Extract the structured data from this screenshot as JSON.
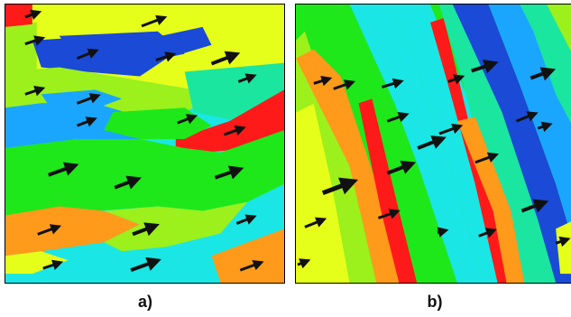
{
  "labels": {
    "a": "a)",
    "b": "b)"
  },
  "colors": {
    "red": "#ff1a1a",
    "orange": "#ff9a1a",
    "yellow": "#e6ff1a",
    "lime": "#9cf01c",
    "green": "#1ee81a",
    "aqua": "#1ae6a0",
    "cyan": "#1ae6e6",
    "sky": "#1aa6ff",
    "blue": "#1a4ad6",
    "arrow": "#111111"
  },
  "icons": {
    "arrow": "flow-arrow-icon"
  }
}
